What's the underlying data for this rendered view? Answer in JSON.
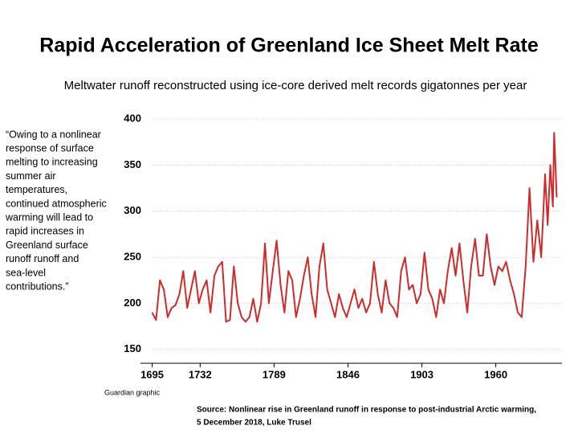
{
  "chart_data": {
    "type": "line",
    "title": "Rapid Acceleration of Greenland Ice Sheet Melt Rate",
    "subtitle": "Meltwater runoff reconstructed  using ice-core derived melt records gigatonnes per year",
    "annotation_lines": [
      "“Owing to a nonlinear",
      "response of surface",
      "melting to increasing",
      "summer air",
      "temperatures,",
      "continued atmospheric",
      "warming will lead to",
      "rapid increases in",
      "Greenland surface",
      "runoff  runoff and",
      "sea-level",
      "contributions.”"
    ],
    "credit": "Guardian graphic",
    "source_lines": [
      "Source: Nonlinear rise in Greenland runoff in response to post-industrial Arctic warming,",
      "5 December 2018, Luke Trusel"
    ],
    "xlim": [
      1686,
      2011
    ],
    "xticks": [
      1695,
      1732,
      1789,
      1846,
      1903,
      1960
    ],
    "ylim": [
      135,
      400
    ],
    "yticks": [
      150,
      200,
      250,
      300,
      350,
      400
    ],
    "grid": true,
    "series": [
      {
        "name": "Meltwater runoff",
        "color": "#d12a2a",
        "x": [
          1695,
          1698,
          1701,
          1704,
          1707,
          1710,
          1713,
          1716,
          1719,
          1722,
          1725,
          1728,
          1731,
          1734,
          1737,
          1740,
          1743,
          1746,
          1749,
          1752,
          1755,
          1758,
          1761,
          1764,
          1767,
          1770,
          1773,
          1776,
          1779,
          1782,
          1785,
          1788,
          1791,
          1794,
          1797,
          1800,
          1803,
          1806,
          1809,
          1812,
          1815,
          1818,
          1821,
          1824,
          1827,
          1830,
          1833,
          1836,
          1839,
          1842,
          1845,
          1848,
          1851,
          1854,
          1857,
          1860,
          1863,
          1866,
          1869,
          1872,
          1875,
          1878,
          1881,
          1884,
          1887,
          1890,
          1893,
          1896,
          1899,
          1902,
          1905,
          1908,
          1911,
          1914,
          1917,
          1920,
          1923,
          1926,
          1929,
          1932,
          1935,
          1938,
          1941,
          1944,
          1947,
          1950,
          1953,
          1956,
          1959,
          1962,
          1965,
          1968,
          1971,
          1974,
          1977,
          1980,
          1983,
          1986,
          1989,
          1992,
          1995,
          1998,
          2000,
          2002,
          2004,
          2005,
          2007
        ],
        "values": [
          190,
          182,
          225,
          215,
          185,
          195,
          198,
          210,
          235,
          195,
          215,
          235,
          200,
          215,
          225,
          190,
          230,
          240,
          245,
          180,
          182,
          240,
          200,
          185,
          180,
          185,
          205,
          180,
          200,
          265,
          200,
          235,
          268,
          220,
          190,
          235,
          225,
          185,
          205,
          230,
          250,
          210,
          185,
          240,
          265,
          215,
          200,
          185,
          210,
          195,
          185,
          200,
          215,
          195,
          205,
          190,
          200,
          245,
          210,
          190,
          225,
          200,
          195,
          185,
          235,
          250,
          215,
          220,
          200,
          210,
          255,
          215,
          205,
          185,
          215,
          200,
          235,
          260,
          230,
          265,
          225,
          190,
          240,
          270,
          230,
          230,
          275,
          240,
          220,
          240,
          235,
          245,
          225,
          210,
          190,
          185,
          240,
          325,
          245,
          290,
          250,
          340,
          285,
          350,
          305,
          385,
          315
        ]
      }
    ]
  }
}
